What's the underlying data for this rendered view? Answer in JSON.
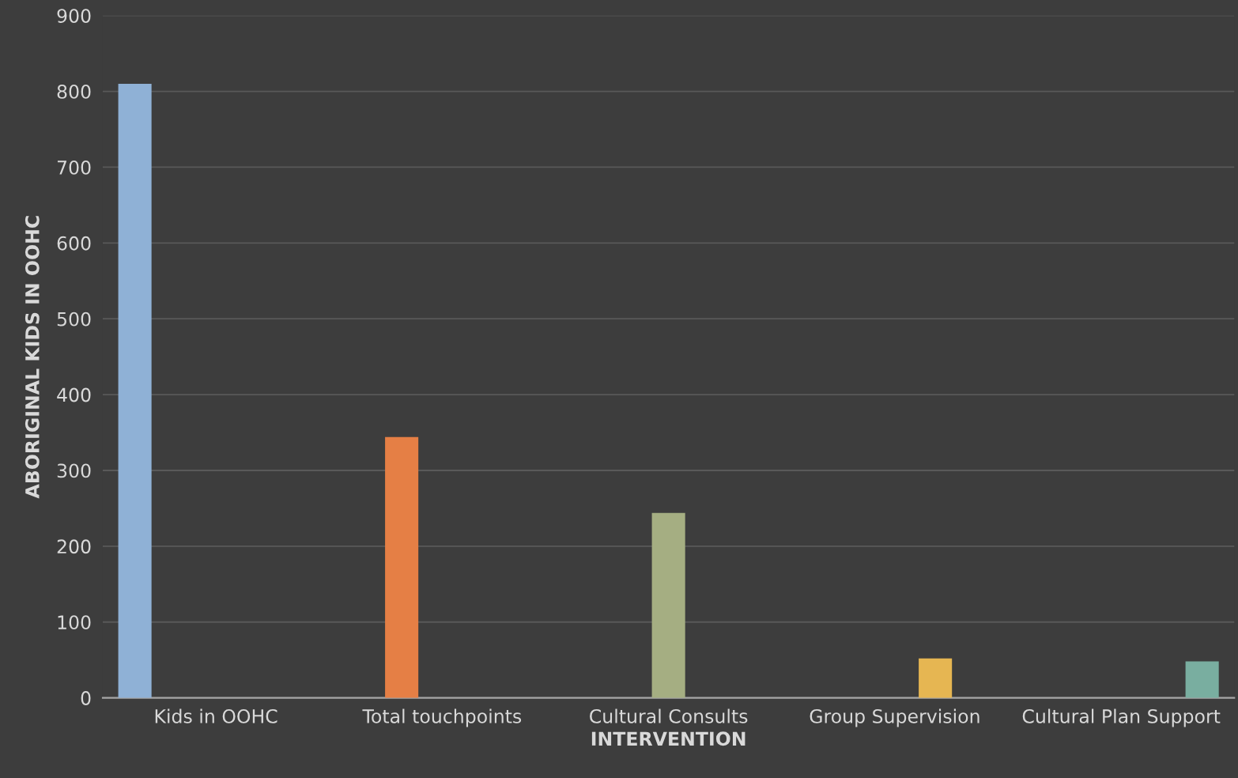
{
  "chart_data": {
    "type": "bar",
    "xlabel": "INTERVENTION",
    "ylabel": "ABORIGINAL KIDS IN OOHC",
    "categories": [
      "Kids in OOHC",
      "Total touchpoints",
      "Cultural Consults",
      "Group Supervision",
      "Cultural Plan Support"
    ],
    "series": [
      {
        "color": "#8fb1d6",
        "values": [
          810,
          null,
          null,
          null,
          null
        ]
      },
      {
        "color": "#e57f45",
        "values": [
          null,
          344,
          null,
          null,
          null
        ]
      },
      {
        "color": "#a5ae82",
        "values": [
          null,
          null,
          244,
          null,
          null
        ]
      },
      {
        "color": "#e6b652",
        "values": [
          null,
          null,
          null,
          52,
          null
        ]
      },
      {
        "color": "#79aea0",
        "values": [
          null,
          null,
          null,
          null,
          48
        ]
      }
    ],
    "ylim": [
      0,
      900
    ],
    "yticks": [
      0,
      100,
      200,
      300,
      400,
      500,
      600,
      700,
      800,
      900
    ],
    "grid": "y",
    "legend": false
  }
}
